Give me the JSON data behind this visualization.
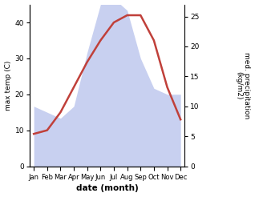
{
  "months": [
    "Jan",
    "Feb",
    "Mar",
    "Apr",
    "May",
    "Jun",
    "Jul",
    "Aug",
    "Sep",
    "Oct",
    "Nov",
    "Dec"
  ],
  "temp": [
    9,
    10,
    15,
    22,
    29,
    35,
    40,
    42,
    42,
    35,
    22,
    13
  ],
  "precip": [
    10,
    9,
    8,
    10,
    19,
    27,
    28,
    26,
    18,
    13,
    12,
    12
  ],
  "temp_color": "#c0403a",
  "precip_fill_color": "#c8d0f0",
  "precip_fill_edge": "#b0b8e8",
  "temp_ylim": [
    0,
    45
  ],
  "precip_ylim": [
    0,
    27
  ],
  "temp_yticks": [
    0,
    10,
    20,
    30,
    40
  ],
  "precip_yticks": [
    0,
    5,
    10,
    15,
    20,
    25
  ],
  "xlabel": "date (month)",
  "ylabel_left": "max temp (C)",
  "ylabel_right": "med. precipitation\n(kg/m2)",
  "bg_color": "#ffffff"
}
